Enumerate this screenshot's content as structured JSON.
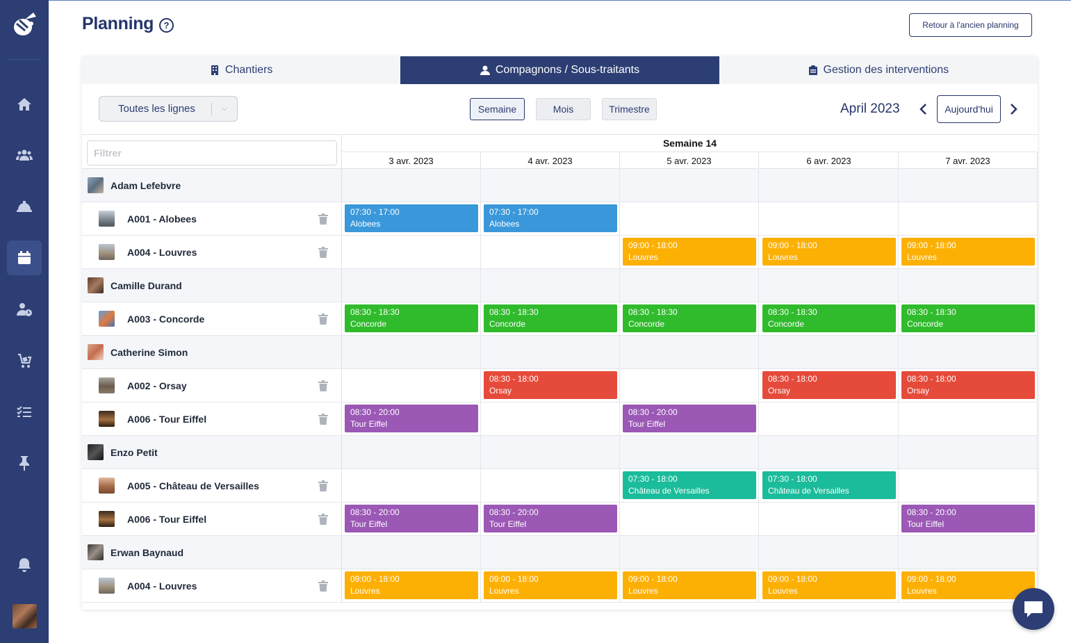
{
  "header": {
    "title": "Planning",
    "old_planning_label": "Retour à l'ancien planning"
  },
  "sidebar": {
    "items": [
      {
        "icon": "home-icon"
      },
      {
        "icon": "team-icon"
      },
      {
        "icon": "helmet-icon"
      },
      {
        "icon": "calendar-icon",
        "active": true
      },
      {
        "icon": "user-clock-icon"
      },
      {
        "icon": "cart-icon"
      },
      {
        "icon": "checklist-icon"
      },
      {
        "icon": "pin-icon"
      },
      {
        "icon": "bell-icon"
      }
    ]
  },
  "tabs": [
    {
      "label": "Chantiers",
      "icon": "building-icon",
      "active": false
    },
    {
      "label": "Compagnons / Sous-traitants",
      "icon": "person-icon",
      "active": true
    },
    {
      "label": "Gestion des interventions",
      "icon": "clipboard-icon",
      "active": false
    }
  ],
  "toolbar": {
    "line_filter": "Toutes les lignes",
    "views": [
      "Semaine",
      "Mois",
      "Trimestre"
    ],
    "active_view": "Semaine",
    "month": "April 2023",
    "today_label": "Aujourd'hui"
  },
  "grid": {
    "filter_placeholder": "Filtrer",
    "week_label": "Semaine 14",
    "days": [
      "3 avr. 2023",
      "4 avr. 2023",
      "5 avr. 2023",
      "6 avr. 2023",
      "7 avr. 2023"
    ]
  },
  "colors": {
    "Alobees": "#3a98da",
    "Louvres": "#fdb004",
    "Concorde": "#30bb2c",
    "Orsay": "#e54a3b",
    "Tour Eiffel": "#9b58b5",
    "Château de Versailles": "#1abc9b"
  },
  "rows": [
    {
      "type": "person",
      "name": "Adam Lefebvre"
    },
    {
      "type": "site",
      "name": "A001 - Alobees",
      "events": [
        {
          "day": 0,
          "time": "07:30 - 17:00",
          "title": "Alobees"
        },
        {
          "day": 1,
          "time": "07:30 - 17:00",
          "title": "Alobees"
        }
      ]
    },
    {
      "type": "site",
      "name": "A004 - Louvres",
      "events": [
        {
          "day": 2,
          "time": "09:00 - 18:00",
          "title": "Louvres"
        },
        {
          "day": 3,
          "time": "09:00 - 18:00",
          "title": "Louvres"
        },
        {
          "day": 4,
          "time": "09:00 - 18:00",
          "title": "Louvres"
        }
      ]
    },
    {
      "type": "person",
      "name": "Camille Durand"
    },
    {
      "type": "site",
      "name": "A003 - Concorde",
      "events": [
        {
          "day": 0,
          "time": "08:30 - 18:30",
          "title": "Concorde"
        },
        {
          "day": 1,
          "time": "08:30 - 18:30",
          "title": "Concorde"
        },
        {
          "day": 2,
          "time": "08:30 - 18:30",
          "title": "Concorde"
        },
        {
          "day": 3,
          "time": "08:30 - 18:30",
          "title": "Concorde"
        },
        {
          "day": 4,
          "time": "08:30 - 18:30",
          "title": "Concorde"
        }
      ]
    },
    {
      "type": "person",
      "name": "Catherine Simon"
    },
    {
      "type": "site",
      "name": "A002 - Orsay",
      "events": [
        {
          "day": 1,
          "time": "08:30 - 18:00",
          "title": "Orsay"
        },
        {
          "day": 3,
          "time": "08:30 - 18:00",
          "title": "Orsay"
        },
        {
          "day": 4,
          "time": "08:30 - 18:00",
          "title": "Orsay"
        }
      ]
    },
    {
      "type": "site",
      "name": "A006 - Tour Eiffel",
      "events": [
        {
          "day": 0,
          "time": "08:30 - 20:00",
          "title": "Tour Eiffel"
        },
        {
          "day": 2,
          "time": "08:30 - 20:00",
          "title": "Tour Eiffel"
        }
      ]
    },
    {
      "type": "person",
      "name": "Enzo Petit"
    },
    {
      "type": "site",
      "name": "A005 - Château de Versailles",
      "events": [
        {
          "day": 2,
          "time": "07:30 - 18:00",
          "title": "Château de Versailles"
        },
        {
          "day": 3,
          "time": "07:30 - 18:00",
          "title": "Château de Versailles"
        }
      ]
    },
    {
      "type": "site",
      "name": "A006 - Tour Eiffel",
      "events": [
        {
          "day": 0,
          "time": "08:30 - 20:00",
          "title": "Tour Eiffel"
        },
        {
          "day": 1,
          "time": "08:30 - 20:00",
          "title": "Tour Eiffel"
        },
        {
          "day": 4,
          "time": "08:30 - 20:00",
          "title": "Tour Eiffel"
        }
      ]
    },
    {
      "type": "person",
      "name": "Erwan Baynaud"
    },
    {
      "type": "site",
      "name": "A004 - Louvres",
      "events": [
        {
          "day": 0,
          "time": "09:00 - 18:00",
          "title": "Louvres"
        },
        {
          "day": 1,
          "time": "09:00 - 18:00",
          "title": "Louvres"
        },
        {
          "day": 2,
          "time": "09:00 - 18:00",
          "title": "Louvres"
        },
        {
          "day": 3,
          "time": "09:00 - 18:00",
          "title": "Louvres"
        },
        {
          "day": 4,
          "time": "09:00 - 18:00",
          "title": "Louvres"
        }
      ]
    }
  ]
}
